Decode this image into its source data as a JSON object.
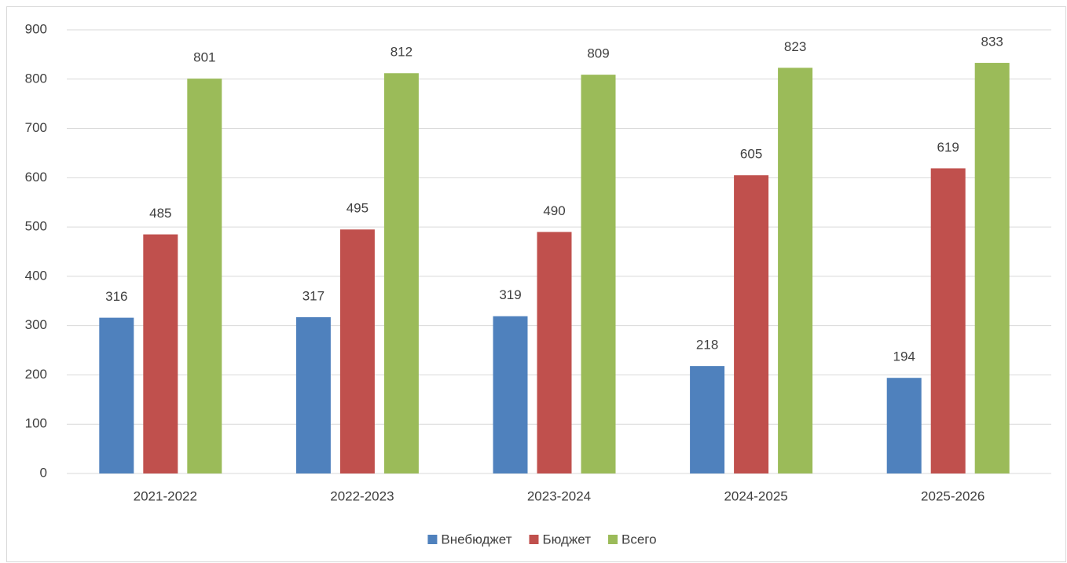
{
  "chart_data": {
    "type": "bar",
    "categories": [
      "2021-2022",
      "2022-2023",
      "2023-2024",
      "2024-2025",
      "2025-2026"
    ],
    "series": [
      {
        "name": "Внебюджет",
        "color": "#4f81bd",
        "values": [
          316,
          317,
          319,
          218,
          194
        ]
      },
      {
        "name": "Бюджет",
        "color": "#c0504d",
        "values": [
          485,
          495,
          490,
          605,
          619
        ]
      },
      {
        "name": "Всего",
        "color": "#9bbb59",
        "values": [
          801,
          812,
          809,
          823,
          833
        ]
      }
    ],
    "ylim": [
      0,
      900
    ],
    "yticks": [
      0,
      100,
      200,
      300,
      400,
      500,
      600,
      700,
      800,
      900
    ],
    "grid": true,
    "legend": "bottom"
  }
}
